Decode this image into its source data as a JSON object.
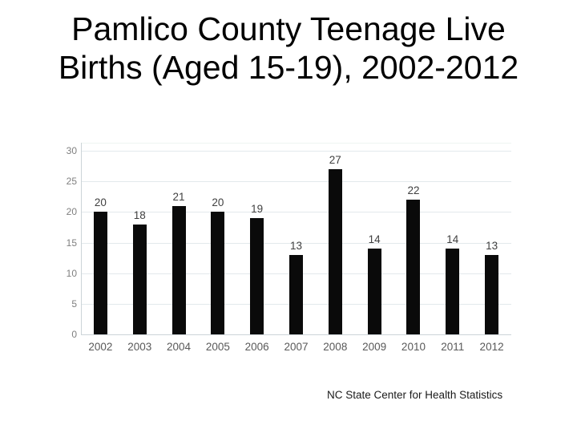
{
  "slide": {
    "title_line1": "Pamlico County Teenage Live",
    "title_line2": "Births (Aged 15-19), 2002-2012",
    "footer": "NC State Center for Health Statistics"
  },
  "colors": {
    "bar": "#0a0a0a",
    "gridline": "#e3e9ec",
    "plot_top_border": "#eef5f2",
    "axis_line": "#ccd4d8",
    "value_label": "#404040",
    "x_label": "#595959",
    "y_label": "#7f7f7f",
    "title": "#000000",
    "footer_text": "#1a1a1a"
  },
  "chart_data": {
    "type": "bar",
    "categories": [
      "2002",
      "2003",
      "2004",
      "2005",
      "2006",
      "2007",
      "2008",
      "2009",
      "2010",
      "2011",
      "2012"
    ],
    "values": [
      20,
      18,
      21,
      20,
      19,
      13,
      27,
      14,
      22,
      14,
      13
    ],
    "title": "",
    "xlabel": "",
    "ylabel": "",
    "ylim": [
      0,
      30
    ],
    "yticks": [
      0,
      5,
      10,
      15,
      20,
      25,
      30
    ],
    "grid": true,
    "legend": "none",
    "data_labels": true,
    "bar_color": "#0a0a0a"
  }
}
